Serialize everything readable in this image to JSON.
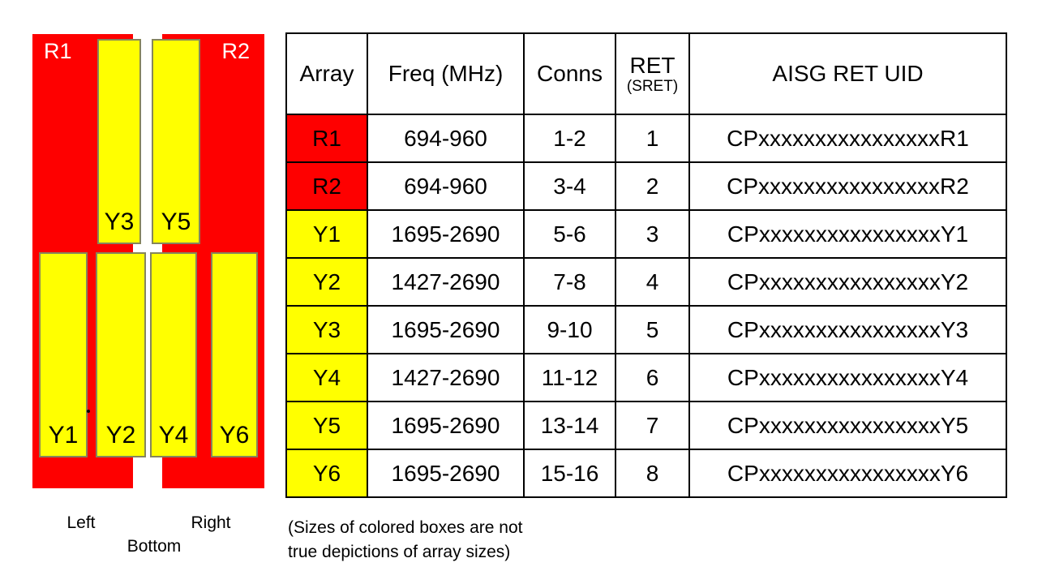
{
  "diagram": {
    "r1": "R1",
    "r2": "R2",
    "y1": "Y1",
    "y2": "Y2",
    "y3": "Y3",
    "y4": "Y4",
    "y5": "Y5",
    "y6": "Y6",
    "left_label": "Left",
    "right_label": "Right",
    "bottom_label": "Bottom"
  },
  "table": {
    "headers": {
      "array": "Array",
      "freq": "Freq (MHz)",
      "conns": "Conns",
      "ret_line1": "RET",
      "ret_line2": "(SRET)",
      "uid": "AISG RET UID"
    },
    "rows": [
      {
        "array": "R1",
        "freq": "694-960",
        "conns": "1-2",
        "ret": "1",
        "uid": "CPxxxxxxxxxxxxxxxxR1"
      },
      {
        "array": "R2",
        "freq": "694-960",
        "conns": "3-4",
        "ret": "2",
        "uid": "CPxxxxxxxxxxxxxxxxR2"
      },
      {
        "array": "Y1",
        "freq": "1695-2690",
        "conns": "5-6",
        "ret": "3",
        "uid": "CPxxxxxxxxxxxxxxxxY1"
      },
      {
        "array": "Y2",
        "freq": "1427-2690",
        "conns": "7-8",
        "ret": "4",
        "uid": "CPxxxxxxxxxxxxxxxxY2"
      },
      {
        "array": "Y3",
        "freq": "1695-2690",
        "conns": "9-10",
        "ret": "5",
        "uid": "CPxxxxxxxxxxxxxxxxY3"
      },
      {
        "array": "Y4",
        "freq": "1427-2690",
        "conns": "11-12",
        "ret": "6",
        "uid": "CPxxxxxxxxxxxxxxxxY4"
      },
      {
        "array": "Y5",
        "freq": "1695-2690",
        "conns": "13-14",
        "ret": "7",
        "uid": "CPxxxxxxxxxxxxxxxxY5"
      },
      {
        "array": "Y6",
        "freq": "1695-2690",
        "conns": "15-16",
        "ret": "8",
        "uid": "CPxxxxxxxxxxxxxxxxY6"
      }
    ]
  },
  "note": {
    "line1": "(Sizes of colored boxes are not",
    "line2": "true depictions of array sizes)"
  },
  "colors": {
    "red": "#fe0000",
    "yellow": "#ffff00",
    "yellow_box_border": "#85855c",
    "table_border": "#000000"
  }
}
